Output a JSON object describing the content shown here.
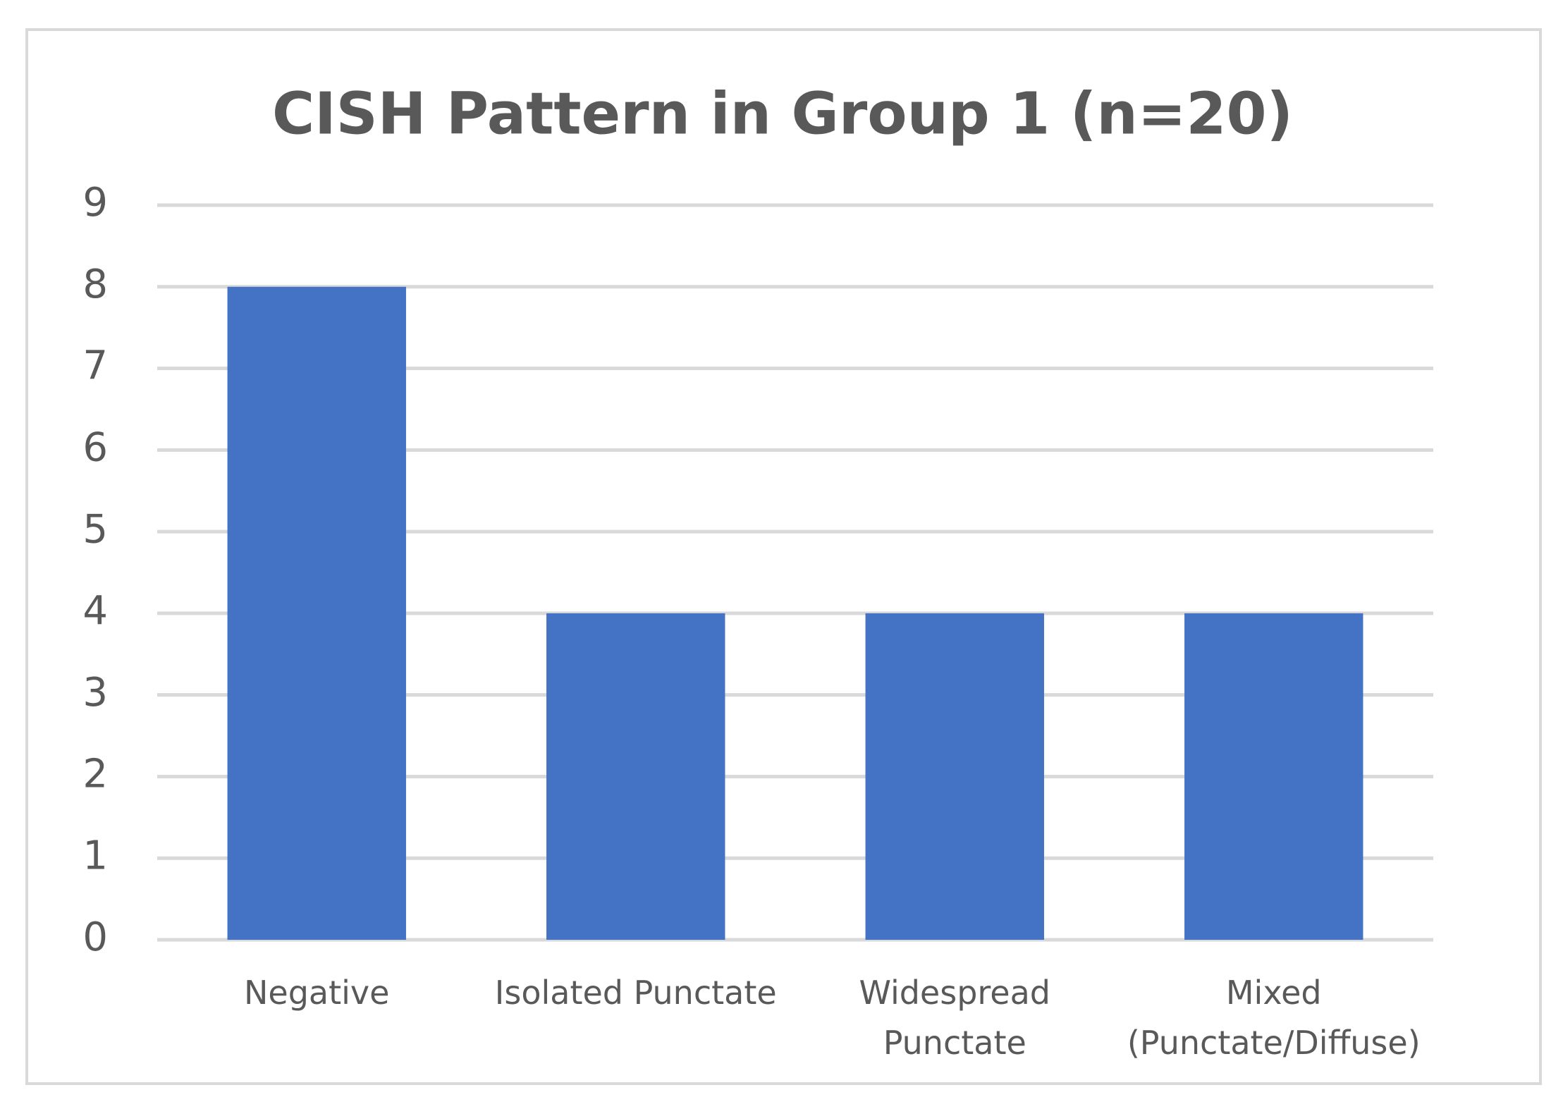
{
  "chart_data": {
    "type": "bar",
    "title": "CISH Pattern in Group 1 (n=20)",
    "categories": [
      "Negative",
      "Isolated Punctate",
      "Widespread Punctate",
      "Mixed (Punctate/Diffuse)"
    ],
    "values": [
      8,
      4,
      4,
      4
    ],
    "color": "#4472c4",
    "ylim": [
      0,
      9
    ],
    "yticks": [
      0,
      1,
      2,
      3,
      4,
      5,
      6,
      7,
      8,
      9
    ],
    "grid": true
  }
}
